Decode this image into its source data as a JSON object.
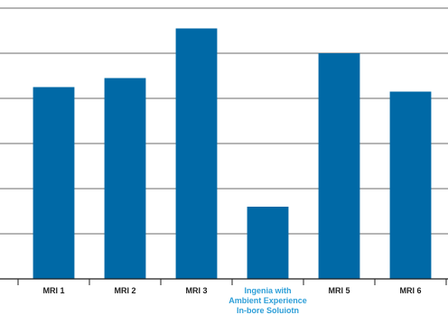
{
  "chart_data": {
    "type": "bar",
    "categories": [
      [
        "MRI 1"
      ],
      [
        "MRI 2"
      ],
      [
        "MRI 3"
      ],
      [
        "Ingenia with",
        "Ambient Experience",
        "In-bore Soluiotn"
      ],
      [
        "MRI 5"
      ],
      [
        "MRI 6"
      ]
    ],
    "values": [
      4.25,
      4.45,
      5.55,
      1.6,
      5.0,
      4.15
    ],
    "highlight_category_index": 3,
    "ylim": [
      0,
      6
    ],
    "gridlines": [
      1,
      2,
      3,
      4,
      5,
      6
    ],
    "grid": true,
    "bar_color": "#0069a6",
    "highlight_label_color": "#2e9fd8",
    "axis_color": "#1f1f1f",
    "grid_color": "#3a3a3a",
    "title": "",
    "xlabel": "",
    "ylabel": ""
  }
}
